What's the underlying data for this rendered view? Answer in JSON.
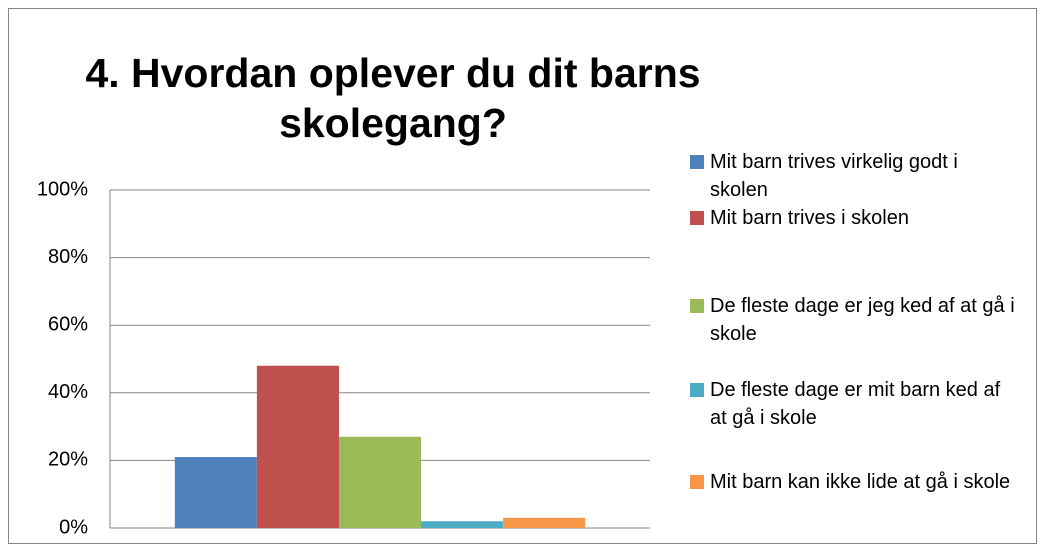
{
  "chart_data": {
    "type": "bar",
    "title": "4. Hvordan oplever du dit barns skolegang?",
    "categories": [
      null
    ],
    "series": [
      {
        "name": "Mit barn trives virkelig godt i skolen",
        "color": "#4f81bd",
        "values": [
          21
        ]
      },
      {
        "name": "Mit barn trives i skolen",
        "color": "#c0504d",
        "values": [
          48
        ]
      },
      {
        "name": "De fleste dage er jeg ked af at gå i skole",
        "color": "#9bbb59",
        "values": [
          27
        ]
      },
      {
        "name": "De fleste dage er mit barn ked af at gå i skole",
        "color": "#4bacc6",
        "values": [
          2
        ]
      },
      {
        "name": "Mit barn kan ikke lide at gå i skole",
        "color": "#f79646",
        "values": [
          3
        ]
      }
    ],
    "ylim": [
      0,
      100
    ],
    "yticks": [
      {
        "value": 0,
        "label": "0%"
      },
      {
        "value": 20,
        "label": "20%"
      },
      {
        "value": 40,
        "label": "40%"
      },
      {
        "value": 60,
        "label": "60%"
      },
      {
        "value": 80,
        "label": "80%"
      },
      {
        "value": 100,
        "label": "100%"
      }
    ],
    "grid": true,
    "legend": "right"
  }
}
